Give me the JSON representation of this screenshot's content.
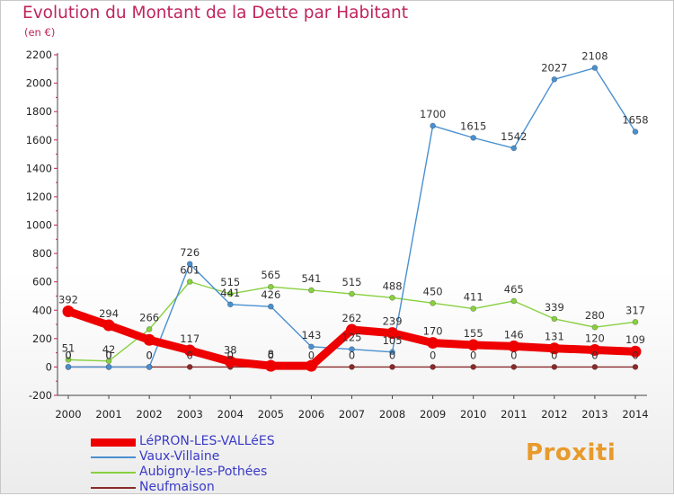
{
  "title": "Evolution du Montant de la Dette par Habitant",
  "unit_label": "(en €)",
  "logo": "Proxiti",
  "colors": {
    "title": "#c0245c",
    "axis_text": "#222222",
    "legend_text": "#3a3ac8"
  },
  "chart_data": {
    "type": "line",
    "title": "Evolution du Montant de la Dette par Habitant",
    "ylabel": "(en €)",
    "xlabel": "",
    "ylim": [
      -200,
      2200
    ],
    "yticks": [
      -200,
      0,
      200,
      400,
      600,
      800,
      1000,
      1200,
      1400,
      1600,
      1800,
      2000,
      2200
    ],
    "grid": false,
    "legend": "bottom-left",
    "categories": [
      "2000",
      "2001",
      "2002",
      "2003",
      "2004",
      "2005",
      "2006",
      "2007",
      "2008",
      "2009",
      "2010",
      "2011",
      "2012",
      "2013",
      "2014"
    ],
    "series": [
      {
        "name": "LéPRON-LES-VALLéES",
        "color": "#ee0000",
        "values": [
          392,
          294,
          191,
          117,
          38,
          8,
          8,
          262,
          239,
          170,
          155,
          146,
          131,
          120,
          109
        ],
        "labels": [
          "392",
          "294",
          "",
          "117",
          "38",
          "8",
          "",
          "262",
          "239",
          "170",
          "155",
          "146",
          "131",
          "120",
          "109"
        ]
      },
      {
        "name": "Vaux-Villaine",
        "color": "#4a90d0",
        "values": [
          0,
          0,
          0,
          726,
          441,
          426,
          143,
          125,
          105,
          1700,
          1615,
          1542,
          2027,
          2108,
          1658
        ],
        "labels": [
          "0",
          "0",
          "0",
          "726",
          "441",
          "426",
          "143",
          "125",
          "105",
          "1700",
          "1615",
          "1542",
          "2027",
          "2108",
          "1658"
        ]
      },
      {
        "name": "Aubigny-les-Pothées",
        "color": "#88d040",
        "values": [
          51,
          42,
          266,
          601,
          515,
          565,
          541,
          515,
          488,
          450,
          411,
          465,
          339,
          280,
          317
        ],
        "labels": [
          "51",
          "42",
          "266",
          "601",
          "515",
          "565",
          "541",
          "515",
          "488",
          "450",
          "411",
          "465",
          "339",
          "280",
          "317"
        ]
      },
      {
        "name": "Neufmaison",
        "color": "#8a2a2a",
        "values": [
          0,
          0,
          0,
          0,
          0,
          0,
          0,
          0,
          0,
          0,
          0,
          0,
          0,
          0,
          0
        ],
        "labels": [
          "0",
          "0",
          "0",
          "0",
          "0",
          "0",
          "0",
          "0",
          "0",
          "0",
          "0",
          "0",
          "0",
          "0",
          "0"
        ]
      }
    ]
  }
}
